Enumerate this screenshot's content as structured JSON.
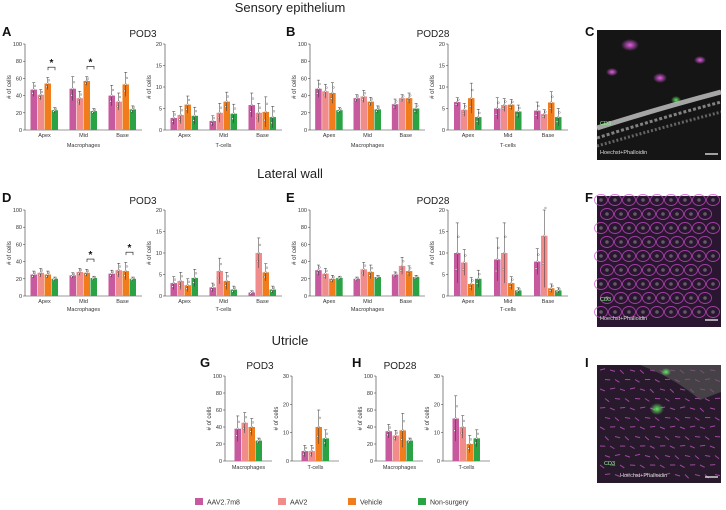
{
  "figure": {
    "sections": [
      "Sensory epithelium",
      "Lateral wall",
      "Utricle"
    ],
    "legend": [
      {
        "label": "AAV2.7m8",
        "color": "#c75a9e"
      },
      {
        "label": "AAV2",
        "color": "#f08c8c"
      },
      {
        "label": "Vehicle",
        "color": "#f07c1c"
      },
      {
        "label": "Non-surgery",
        "color": "#2aa345"
      }
    ],
    "micrographs": [
      {
        "letter": "C",
        "stain": "Hoechst+Phalloidin",
        "marker": "CD3"
      },
      {
        "letter": "F",
        "stain": "Hoechst+Phalloidin",
        "marker": "CD3"
      },
      {
        "letter": "I",
        "stain": "Hoechst+Phalloidin",
        "marker": "CD3"
      }
    ]
  },
  "chart_data": [
    {
      "type": "bar",
      "panel": "A",
      "title": "POD3",
      "section": "Sensory epithelium",
      "cell_type": "Macrophages",
      "ylabel": "# of cells",
      "xlabel": "Macrophages",
      "ylim": [
        0,
        100
      ],
      "yticks": [
        0,
        20,
        40,
        60,
        80,
        100
      ],
      "categories": [
        "Apex",
        "Mid",
        "Base"
      ],
      "series": [
        {
          "name": "AAV2.7m8",
          "values": [
            47,
            48,
            40
          ],
          "errors": [
            8,
            14,
            12
          ]
        },
        {
          "name": "AAV2",
          "values": [
            41,
            37,
            33
          ],
          "errors": [
            6,
            8,
            10
          ]
        },
        {
          "name": "Vehicle",
          "values": [
            54,
            57,
            53
          ],
          "errors": [
            7,
            5,
            14
          ]
        },
        {
          "name": "Non-surgery",
          "values": [
            23,
            22,
            24
          ],
          "errors": [
            3,
            3,
            4
          ]
        }
      ],
      "significance": [
        "*",
        "*"
      ]
    },
    {
      "type": "bar",
      "panel": "A",
      "title": "",
      "section": "Sensory epithelium",
      "cell_type": "T-cells",
      "ylabel": "# of cells",
      "xlabel": "T-cells",
      "ylim": [
        0,
        20
      ],
      "yticks": [
        0,
        5,
        10,
        15,
        20
      ],
      "categories": [
        "Apex",
        "Mid",
        "Base"
      ],
      "series": [
        {
          "name": "AAV2.7m8",
          "values": [
            2.8,
            2.1,
            5.8
          ],
          "errors": [
            1.5,
            1.2,
            2.8
          ]
        },
        {
          "name": "AAV2",
          "values": [
            3.5,
            4.0,
            4.0
          ],
          "errors": [
            2.0,
            2.2,
            2.2
          ]
        },
        {
          "name": "Vehicle",
          "values": [
            5.9,
            6.6,
            4.2
          ],
          "errors": [
            2.0,
            2.2,
            3.5
          ]
        },
        {
          "name": "Non-surgery",
          "values": [
            3.3,
            3.8,
            3.0
          ],
          "errors": [
            2.0,
            2.2,
            2.5
          ]
        }
      ]
    },
    {
      "type": "bar",
      "panel": "B",
      "title": "POD28",
      "section": "Sensory epithelium",
      "cell_type": "Macrophages",
      "ylabel": "# of cells",
      "xlabel": "Macrophages",
      "ylim": [
        0,
        100
      ],
      "yticks": [
        0,
        20,
        40,
        60,
        80,
        100
      ],
      "categories": [
        "Apex",
        "Mid",
        "Base"
      ],
      "series": [
        {
          "name": "AAV2.7m8",
          "values": [
            48,
            37,
            30
          ],
          "errors": [
            10,
            4,
            6
          ]
        },
        {
          "name": "AAV2",
          "values": [
            45,
            39,
            37
          ],
          "errors": [
            8,
            7,
            4
          ]
        },
        {
          "name": "Vehicle",
          "values": [
            43,
            33,
            37
          ],
          "errors": [
            12,
            5,
            6
          ]
        },
        {
          "name": "Non-surgery",
          "values": [
            23,
            24,
            25
          ],
          "errors": [
            3,
            4,
            6
          ]
        }
      ]
    },
    {
      "type": "bar",
      "panel": "B",
      "title": "",
      "section": "Sensory epithelium",
      "cell_type": "T-cells",
      "ylabel": "# of cells",
      "xlabel": "T-cells",
      "ylim": [
        0,
        20
      ],
      "yticks": [
        0,
        5,
        10,
        15,
        20
      ],
      "categories": [
        "Apex",
        "Mid",
        "Base"
      ],
      "series": [
        {
          "name": "AAV2.7m8",
          "values": [
            6.5,
            5.0,
            4.5
          ],
          "errors": [
            1.0,
            2.5,
            2.0
          ]
        },
        {
          "name": "AAV2",
          "values": [
            4.7,
            5.8,
            3.7
          ],
          "errors": [
            1.5,
            1.5,
            1.0
          ]
        },
        {
          "name": "Vehicle",
          "values": [
            7.4,
            5.9,
            6.4
          ],
          "errors": [
            3.5,
            1.2,
            2.5
          ]
        },
        {
          "name": "Non-surgery",
          "values": [
            3.0,
            4.3,
            3.0
          ],
          "errors": [
            1.8,
            1.5,
            2.0
          ]
        }
      ]
    },
    {
      "type": "bar",
      "panel": "D",
      "title": "POD3",
      "section": "Lateral wall",
      "cell_type": "Macrophages",
      "ylabel": "# of cells",
      "xlabel": "Macrophages",
      "ylim": [
        0,
        100
      ],
      "yticks": [
        0,
        20,
        40,
        60,
        80,
        100
      ],
      "categories": [
        "Apex",
        "Mid",
        "Base"
      ],
      "series": [
        {
          "name": "AAV2.7m8",
          "values": [
            25,
            24,
            26
          ],
          "errors": [
            4,
            3,
            4
          ]
        },
        {
          "name": "AAV2",
          "values": [
            27,
            28,
            30
          ],
          "errors": [
            5,
            4,
            8
          ]
        },
        {
          "name": "Vehicle",
          "values": [
            25,
            27,
            29
          ],
          "errors": [
            4,
            4,
            10
          ]
        },
        {
          "name": "Non-surgery",
          "values": [
            20,
            21,
            20
          ],
          "errors": [
            2,
            2,
            2
          ]
        }
      ],
      "significance": [
        "*",
        "*"
      ]
    },
    {
      "type": "bar",
      "panel": "D",
      "title": "",
      "section": "Lateral wall",
      "cell_type": "T-cells",
      "ylabel": "# of cells",
      "xlabel": "T-cells",
      "ylim": [
        0,
        20
      ],
      "yticks": [
        0,
        5,
        10,
        15,
        20
      ],
      "categories": [
        "Apex",
        "Mid",
        "Base"
      ],
      "series": [
        {
          "name": "AAV2.7m8",
          "values": [
            3.0,
            2.0,
            0.8
          ],
          "errors": [
            1.5,
            1.0,
            0.4
          ]
        },
        {
          "name": "AAV2",
          "values": [
            3.5,
            5.8,
            10.0
          ],
          "errors": [
            2.0,
            3.0,
            3.5
          ]
        },
        {
          "name": "Vehicle",
          "values": [
            2.5,
            3.5,
            5.5
          ],
          "errors": [
            1.5,
            2.0,
            2.0
          ]
        },
        {
          "name": "Non-surgery",
          "values": [
            4.2,
            1.5,
            1.5
          ],
          "errors": [
            2.0,
            0.8,
            0.8
          ]
        }
      ]
    },
    {
      "type": "bar",
      "panel": "E",
      "title": "POD28",
      "section": "Lateral wall",
      "cell_type": "Macrophages",
      "ylabel": "# of cells",
      "xlabel": "Macrophages",
      "ylim": [
        0,
        100
      ],
      "yticks": [
        0,
        20,
        40,
        60,
        80,
        100
      ],
      "categories": [
        "Apex",
        "Mid",
        "Base"
      ],
      "series": [
        {
          "name": "AAV2.7m8",
          "values": [
            30,
            20,
            25
          ],
          "errors": [
            6,
            2,
            3
          ]
        },
        {
          "name": "AAV2",
          "values": [
            26,
            31,
            35
          ],
          "errors": [
            6,
            8,
            10
          ]
        },
        {
          "name": "Vehicle",
          "values": [
            20,
            28,
            29
          ],
          "errors": [
            4,
            8,
            6
          ]
        },
        {
          "name": "Non-surgery",
          "values": [
            21,
            22,
            22
          ],
          "errors": [
            2,
            2,
            2
          ]
        }
      ]
    },
    {
      "type": "bar",
      "panel": "E",
      "title": "",
      "section": "Lateral wall",
      "cell_type": "T-cells",
      "ylabel": "# of cells",
      "xlabel": "T-cells",
      "ylim": [
        0,
        20
      ],
      "yticks": [
        0,
        5,
        10,
        15,
        20
      ],
      "categories": [
        "Apex",
        "Mid",
        "Base"
      ],
      "series": [
        {
          "name": "AAV2.7m8",
          "values": [
            10.0,
            8.5,
            8.0
          ],
          "errors": [
            7.0,
            5.0,
            3.0
          ]
        },
        {
          "name": "AAV2",
          "values": [
            7.8,
            10.0,
            14.0
          ],
          "errors": [
            3.0,
            7.0,
            12.0
          ]
        },
        {
          "name": "Vehicle",
          "values": [
            2.8,
            3.0,
            1.8
          ],
          "errors": [
            1.5,
            1.5,
            1.0
          ]
        },
        {
          "name": "Non-surgery",
          "values": [
            4.0,
            1.3,
            1.3
          ],
          "errors": [
            2.0,
            0.6,
            0.6
          ]
        }
      ]
    },
    {
      "type": "bar",
      "panel": "G",
      "title": "POD3",
      "section": "Utricle",
      "cell_type": "Macrophages",
      "ylabel": "# of cells",
      "xlabel": "Macrophages",
      "ylim": [
        0,
        100
      ],
      "yticks": [
        0,
        20,
        40,
        60,
        80,
        100
      ],
      "categories": [
        ""
      ],
      "series": [
        {
          "name": "AAV2.7m8",
          "values": [
            38
          ],
          "errors": [
            15
          ]
        },
        {
          "name": "AAV2",
          "values": [
            45
          ],
          "errors": [
            12
          ]
        },
        {
          "name": "Vehicle",
          "values": [
            40
          ],
          "errors": [
            10
          ]
        },
        {
          "name": "Non-surgery",
          "values": [
            24
          ],
          "errors": [
            3
          ]
        }
      ]
    },
    {
      "type": "bar",
      "panel": "G",
      "title": "",
      "section": "Utricle",
      "cell_type": "T-cells",
      "ylabel": "# of cells",
      "xlabel": "T-cells",
      "ylim": [
        0,
        30
      ],
      "yticks": [
        0,
        10,
        20,
        30
      ],
      "categories": [
        ""
      ],
      "series": [
        {
          "name": "AAV2.7m8",
          "values": [
            3.5
          ],
          "errors": [
            2.0
          ]
        },
        {
          "name": "AAV2",
          "values": [
            3.5
          ],
          "errors": [
            2.0
          ]
        },
        {
          "name": "Vehicle",
          "values": [
            12
          ],
          "errors": [
            6
          ]
        },
        {
          "name": "Non-surgery",
          "values": [
            8
          ],
          "errors": [
            3
          ]
        }
      ]
    },
    {
      "type": "bar",
      "panel": "H",
      "title": "POD28",
      "section": "Utricle",
      "cell_type": "Macrophages",
      "ylabel": "# of cells",
      "xlabel": "Macrophages",
      "ylim": [
        0,
        100
      ],
      "yticks": [
        0,
        20,
        40,
        60,
        80,
        100
      ],
      "categories": [
        ""
      ],
      "series": [
        {
          "name": "AAV2.7m8",
          "values": [
            35
          ],
          "errors": [
            8
          ]
        },
        {
          "name": "AAV2",
          "values": [
            30
          ],
          "errors": [
            6
          ]
        },
        {
          "name": "Vehicle",
          "values": [
            36
          ],
          "errors": [
            20
          ]
        },
        {
          "name": "Non-surgery",
          "values": [
            24
          ],
          "errors": [
            3
          ]
        }
      ]
    },
    {
      "type": "bar",
      "panel": "H",
      "title": "",
      "section": "Utricle",
      "cell_type": "T-cells",
      "ylabel": "# of cells",
      "xlabel": "T-cells",
      "ylim": [
        0,
        30
      ],
      "yticks": [
        0,
        10,
        20,
        30
      ],
      "categories": [
        ""
      ],
      "series": [
        {
          "name": "AAV2.7m8",
          "values": [
            15
          ],
          "errors": [
            8
          ]
        },
        {
          "name": "AAV2",
          "values": [
            12
          ],
          "errors": [
            4
          ]
        },
        {
          "name": "Vehicle",
          "values": [
            6
          ],
          "errors": [
            3
          ]
        },
        {
          "name": "Non-surgery",
          "values": [
            8
          ],
          "errors": [
            3
          ]
        }
      ]
    }
  ]
}
